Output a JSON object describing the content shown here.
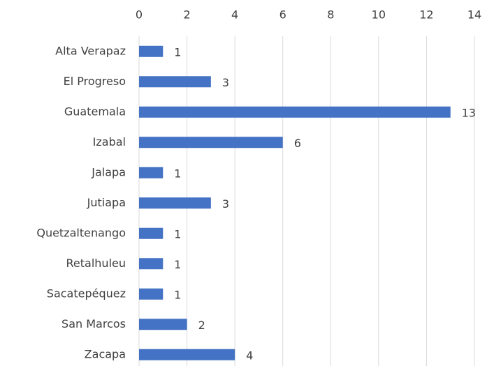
{
  "chart_data": {
    "type": "bar",
    "orientation": "horizontal",
    "categories": [
      "Alta Verapaz",
      "El Progreso",
      "Guatemala",
      "Izabal",
      "Jalapa",
      "Jutiapa",
      "Quetzaltenango",
      "Retalhuleu",
      "Sacatepéquez",
      "San Marcos",
      "Zacapa"
    ],
    "values": [
      1,
      3,
      13,
      6,
      1,
      3,
      1,
      1,
      1,
      2,
      4
    ],
    "color": "#4472c4",
    "xlim": [
      0,
      14
    ],
    "xticks": [
      0,
      2,
      4,
      6,
      8,
      10,
      12,
      14
    ],
    "grid": true
  }
}
